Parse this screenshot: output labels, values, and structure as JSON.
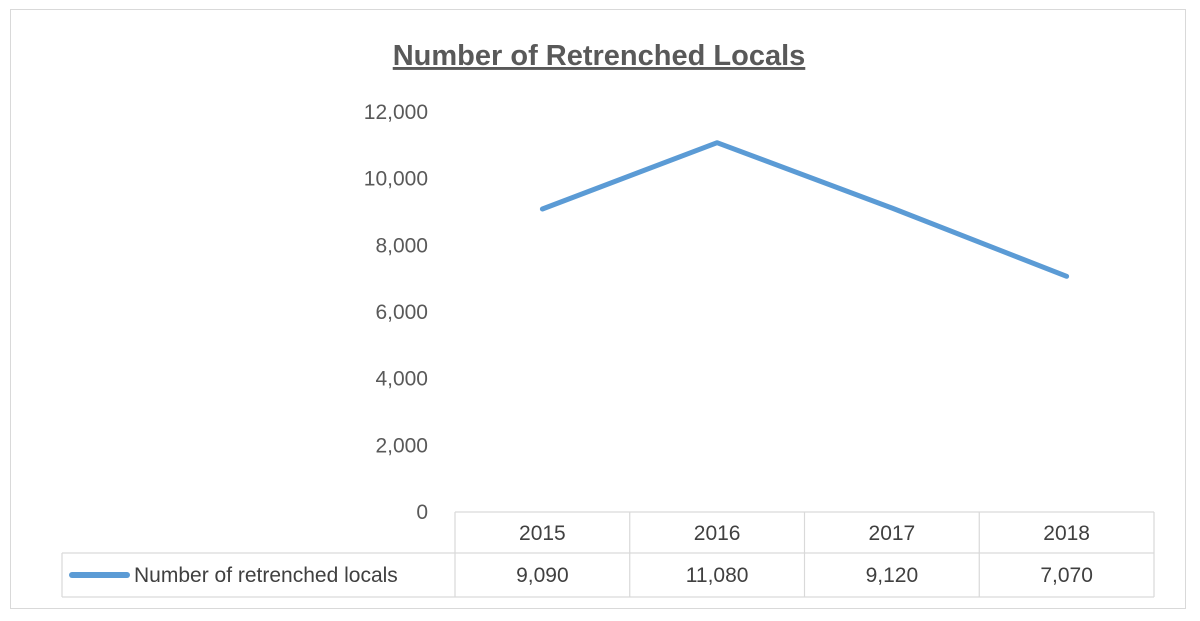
{
  "chart_data": {
    "type": "line",
    "title": "Number of Retrenched Locals",
    "categories": [
      "2015",
      "2016",
      "2017",
      "2018"
    ],
    "series": [
      {
        "name": "Number of retrenched locals",
        "values": [
          9090,
          11080,
          9120,
          7070
        ],
        "value_labels": [
          "9,090",
          "11,080",
          "9,120",
          "7,070"
        ],
        "color": "#5b9bd5"
      }
    ],
    "yticks": [
      "0",
      "2,000",
      "4,000",
      "6,000",
      "8,000",
      "10,000",
      "12,000"
    ],
    "ylim": [
      0,
      12000
    ],
    "grid": false,
    "legend": "data-table"
  }
}
